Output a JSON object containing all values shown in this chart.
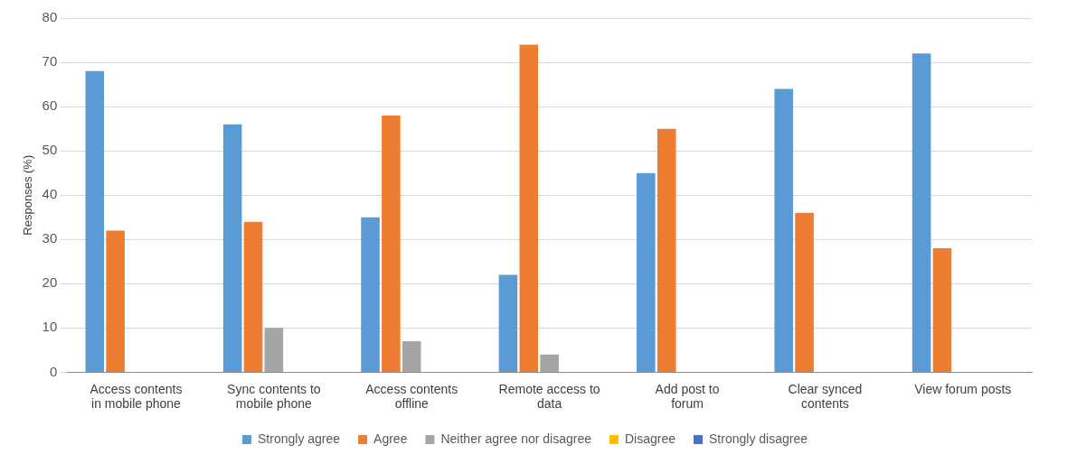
{
  "chart_data": {
    "type": "bar",
    "ylabel": "Responses (%)",
    "categories": [
      "Access contents in mobile phone",
      "Sync contents to mobile phone",
      "Access contents offline",
      "Remote access to data",
      "Add post to forum",
      "Clear synced contents",
      "View forum posts"
    ],
    "series": [
      {
        "name": "Strongly agree",
        "color": "#5b9bd5",
        "values": [
          68,
          56,
          35,
          22,
          45,
          64,
          72
        ]
      },
      {
        "name": "Agree",
        "color": "#ed7d31",
        "values": [
          32,
          34,
          58,
          74,
          55,
          36,
          28
        ]
      },
      {
        "name": "Neither agree nor disagree",
        "color": "#a5a5a5",
        "values": [
          0,
          10,
          7,
          4,
          0,
          0,
          0
        ]
      },
      {
        "name": "Disagree",
        "color": "#ffc000",
        "values": [
          0,
          0,
          0,
          0,
          0,
          0,
          0
        ]
      },
      {
        "name": "Strongly disagree",
        "color": "#4472c4",
        "values": [
          0,
          0,
          0,
          0,
          0,
          0,
          0
        ]
      }
    ],
    "ylim": [
      0,
      80
    ],
    "yticks": [
      0,
      10,
      20,
      30,
      40,
      50,
      60,
      70,
      80
    ],
    "grid": "y",
    "legend": "bottom"
  }
}
